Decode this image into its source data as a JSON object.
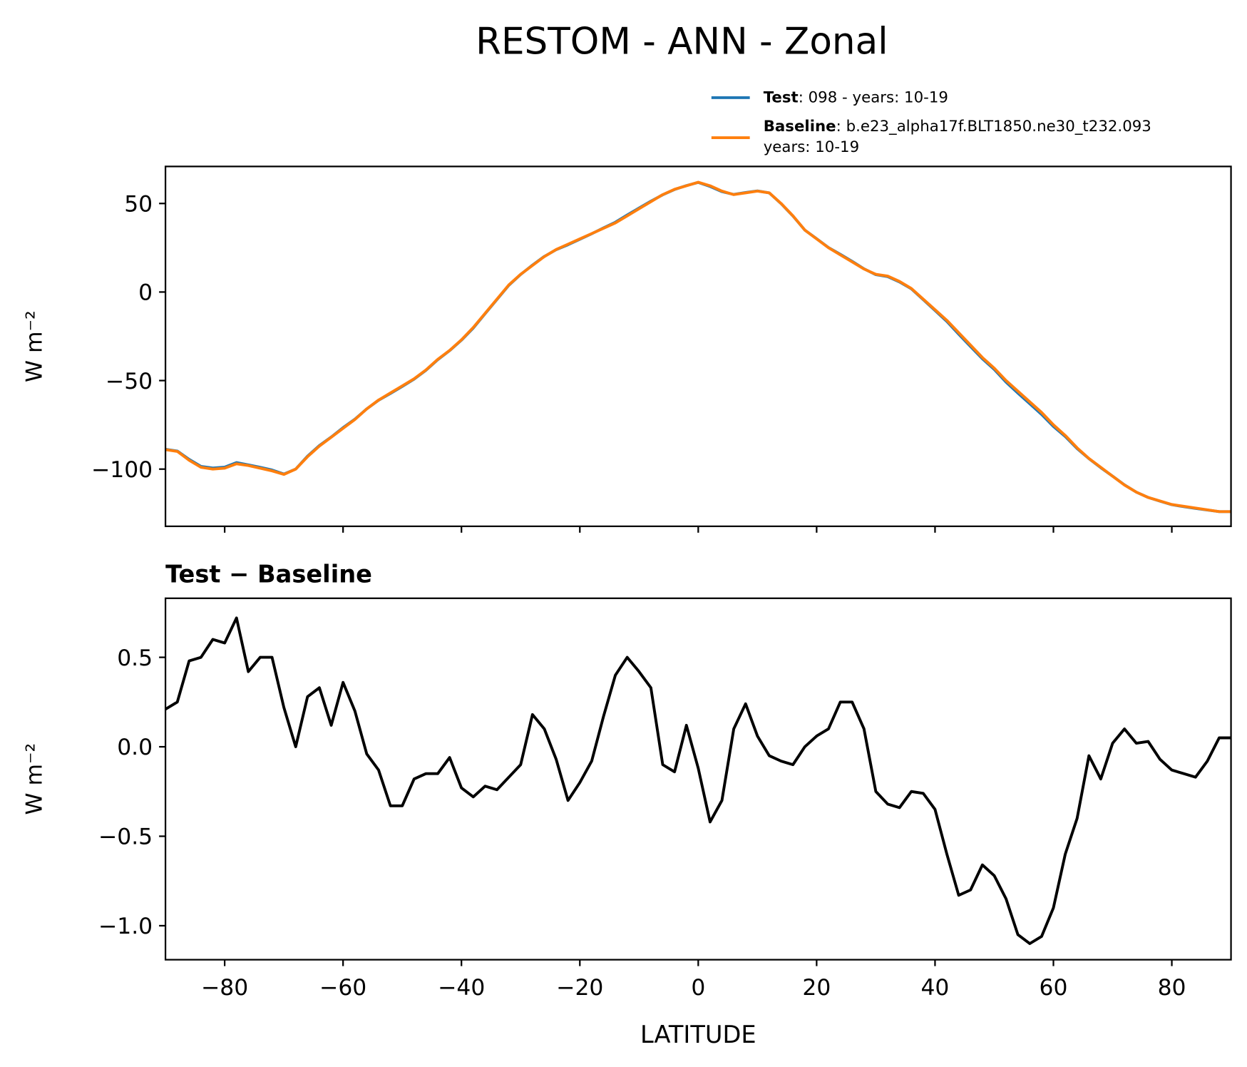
{
  "chart_data": [
    {
      "type": "line",
      "title": "RESTOM - ANN - Zonal",
      "ylabel": "W m⁻²",
      "x": [
        -90,
        -88,
        -86,
        -84,
        -82,
        -80,
        -78,
        -76,
        -74,
        -72,
        -70,
        -68,
        -66,
        -64,
        -62,
        -60,
        -58,
        -56,
        -54,
        -52,
        -50,
        -48,
        -46,
        -44,
        -42,
        -40,
        -38,
        -36,
        -34,
        -32,
        -30,
        -28,
        -26,
        -24,
        -22,
        -20,
        -18,
        -16,
        -14,
        -12,
        -10,
        -8,
        -6,
        -4,
        -2,
        0,
        2,
        4,
        6,
        8,
        10,
        12,
        14,
        16,
        18,
        20,
        22,
        24,
        26,
        28,
        30,
        32,
        34,
        36,
        38,
        40,
        42,
        44,
        46,
        48,
        50,
        52,
        54,
        56,
        58,
        60,
        62,
        64,
        66,
        68,
        70,
        72,
        74,
        76,
        78,
        80,
        82,
        84,
        86,
        88,
        90
      ],
      "series": [
        {
          "name": "Test",
          "description": [
            ": 098 - years: 10-19"
          ],
          "color": "#1f77b4",
          "values": [
            -88.8,
            -89.8,
            -94.5,
            -98.5,
            -99.4,
            -98.9,
            -96.3,
            -97.6,
            -99,
            -100.5,
            -102.8,
            -100,
            -92.7,
            -86.7,
            -81.9,
            -76.6,
            -71.8,
            -66,
            -61.1,
            -57.3,
            -53.3,
            -49.2,
            -44.2,
            -38.2,
            -33.1,
            -27.2,
            -20.3,
            -12.2,
            -4.2,
            3.8,
            9.9,
            15.2,
            20.1,
            23.9,
            26.7,
            29.8,
            32.9,
            36.2,
            39.4,
            43.5,
            47.4,
            51.3,
            54.9,
            57.9,
            60.1,
            61.9,
            59.6,
            56.7,
            55.1,
            56.2,
            57.1,
            56,
            49.9,
            42.9,
            35,
            30.1,
            25.1,
            21.3,
            17.3,
            13.1,
            9.8,
            8.7,
            5.7,
            1.8,
            -4.3,
            -10.4,
            -16.6,
            -23.8,
            -30.8,
            -37.7,
            -43.7,
            -50.9,
            -57.1,
            -63.1,
            -69.1,
            -75.9,
            -81.6,
            -88.4,
            -94.1,
            -99.2,
            -104,
            -108.9,
            -113,
            -116,
            -118.1,
            -120.1,
            -121.2,
            -122.2,
            -123.1,
            -124,
            -124
          ]
        },
        {
          "name": "Baseline",
          "description": [
            ": b.e23_alpha17f.BLT1850.ne30_t232.093",
            "years: 10-19"
          ],
          "color": "#ff7f0e",
          "values": [
            -89,
            -90,
            -95,
            -99,
            -100,
            -99.5,
            -97,
            -98,
            -99.5,
            -101,
            -103,
            -100,
            -93,
            -87,
            -82,
            -77,
            -72,
            -66,
            -61,
            -57,
            -53,
            -49,
            -44,
            -38,
            -33,
            -27,
            -20,
            -12,
            -4,
            4,
            10,
            15,
            20,
            24,
            27,
            30,
            33,
            36,
            39,
            43,
            47,
            51,
            55,
            58,
            60,
            62,
            60,
            57,
            55,
            56,
            57,
            56,
            50,
            43,
            35,
            30,
            25,
            21,
            17,
            13,
            10,
            9,
            6,
            2,
            -4,
            -10,
            -16,
            -23,
            -30,
            -37,
            -43,
            -50,
            -56,
            -62,
            -68,
            -75,
            -81,
            -88,
            -94,
            -99,
            -104,
            -109,
            -113,
            -116,
            -118,
            -120,
            -121,
            -122,
            -123,
            -124,
            -124
          ]
        }
      ],
      "xlim": [
        -90,
        90
      ],
      "xticks": [
        -80,
        -60,
        -40,
        -20,
        0,
        20,
        40,
        60,
        80
      ],
      "ylim": [
        -132.3,
        70.9
      ],
      "yticks": [
        {
          "value": -100,
          "label": "−100"
        },
        {
          "value": -50,
          "label": "−50"
        },
        0,
        50
      ]
    },
    {
      "type": "line",
      "title": "Test − Baseline",
      "xlabel": "LATITUDE",
      "ylabel": "W m⁻²",
      "x": [
        -90,
        -88,
        -86,
        -84,
        -82,
        -80,
        -78,
        -76,
        -74,
        -72,
        -70,
        -68,
        -66,
        -64,
        -62,
        -60,
        -58,
        -56,
        -54,
        -52,
        -50,
        -48,
        -46,
        -44,
        -42,
        -40,
        -38,
        -36,
        -34,
        -32,
        -30,
        -28,
        -26,
        -24,
        -22,
        -20,
        -18,
        -16,
        -14,
        -12,
        -10,
        -8,
        -6,
        -4,
        -2,
        0,
        2,
        4,
        6,
        8,
        10,
        12,
        14,
        16,
        18,
        20,
        22,
        24,
        26,
        28,
        30,
        32,
        34,
        36,
        38,
        40,
        42,
        44,
        46,
        48,
        50,
        52,
        54,
        56,
        58,
        60,
        62,
        64,
        66,
        68,
        70,
        72,
        74,
        76,
        78,
        80,
        82,
        84,
        86,
        88,
        90
      ],
      "color": "#000000",
      "values": [
        0.21,
        0.25,
        0.48,
        0.5,
        0.6,
        0.58,
        0.72,
        0.42,
        0.5,
        0.5,
        0.22,
        0,
        0.28,
        0.33,
        0.12,
        0.36,
        0.2,
        -0.04,
        -0.13,
        -0.33,
        -0.33,
        -0.18,
        -0.15,
        -0.15,
        -0.06,
        -0.23,
        -0.28,
        -0.22,
        -0.24,
        -0.17,
        -0.1,
        0.18,
        0.1,
        -0.07,
        -0.3,
        -0.2,
        -0.08,
        0.17,
        0.4,
        0.5,
        0.42,
        0.33,
        -0.1,
        -0.14,
        0.12,
        -0.12,
        -0.42,
        -0.3,
        0.1,
        0.24,
        0.06,
        -0.05,
        -0.08,
        -0.1,
        0,
        0.06,
        0.1,
        0.25,
        0.25,
        0.1,
        -0.25,
        -0.32,
        -0.34,
        -0.25,
        -0.26,
        -0.35,
        -0.6,
        -0.83,
        -0.8,
        -0.66,
        -0.72,
        -0.85,
        -1.05,
        -1.1,
        -1.06,
        -0.9,
        -0.6,
        -0.4,
        -0.05,
        -0.18,
        0.02,
        0.1,
        0.02,
        0.03,
        -0.07,
        -0.13,
        -0.15,
        -0.17,
        -0.08,
        0.05,
        0.05
      ],
      "xlim": [
        -90,
        90
      ],
      "xticks": [
        {
          "value": -80,
          "label": "−80"
        },
        {
          "value": -60,
          "label": "−60"
        },
        {
          "value": -40,
          "label": "−40"
        },
        {
          "value": -20,
          "label": "−20"
        },
        0,
        20,
        40,
        60,
        80
      ],
      "ylim": [
        -1.19,
        0.83
      ],
      "yticks": [
        {
          "value": -1.0,
          "label": "−1.0"
        },
        {
          "value": -0.5,
          "label": "−0.5"
        },
        {
          "value": 0,
          "label": "0.0"
        },
        {
          "value": 0.5,
          "label": "0.5"
        }
      ]
    }
  ]
}
